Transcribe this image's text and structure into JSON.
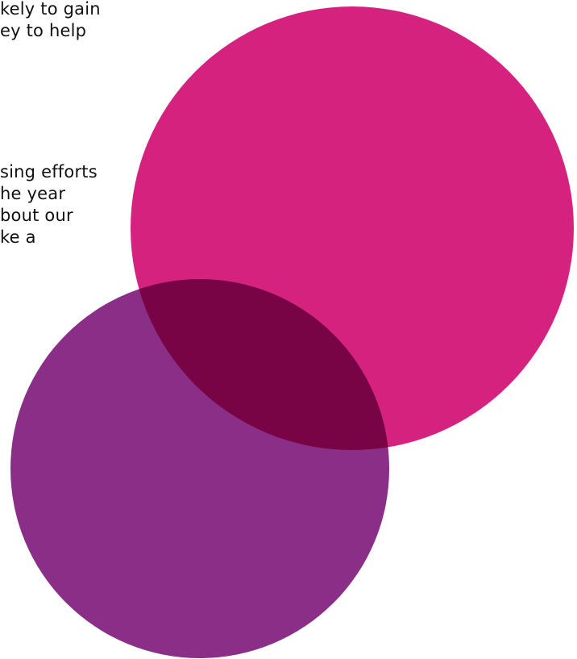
{
  "text_blocks": [
    {
      "lines": [
        "kely to gain",
        "ey to help"
      ]
    },
    {
      "lines": [
        "sing efforts",
        "he year",
        "bout our",
        "ke a"
      ]
    }
  ],
  "colors": {
    "pink_circle": "#d6227f",
    "purple_circle": "#8b2e87",
    "overlap": "#790445",
    "text": "#111111",
    "background": "#ffffff"
  }
}
